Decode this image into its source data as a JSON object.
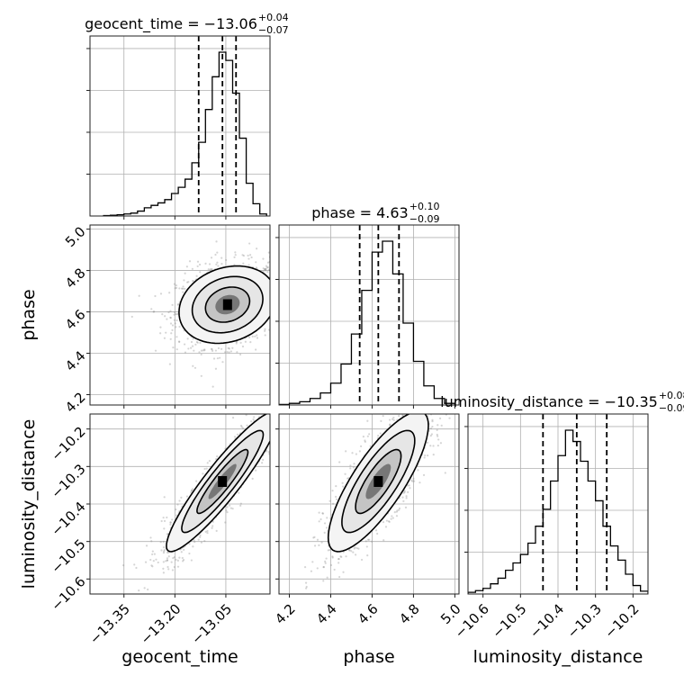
{
  "chart_data": {
    "type": "corner",
    "parameters": [
      {
        "name": "geocent_time",
        "median": -13.06,
        "plus": 0.04,
        "minus": 0.07,
        "lim": [
          -13.45,
          -12.92
        ],
        "title_prefix": "geocent_time = −13.06",
        "title_plus": "+0.04",
        "title_minus": "−0.07",
        "ticks": [
          -13.35,
          -13.2,
          -13.05
        ],
        "tick_labels": [
          "−13.35",
          "−13.20",
          "−13.05"
        ]
      },
      {
        "name": "phase",
        "median": 4.63,
        "plus": 0.1,
        "minus": 0.09,
        "lim": [
          4.15,
          5.02
        ],
        "title_prefix": "phase = 4.63",
        "title_plus": "+0.10",
        "title_minus": "−0.09",
        "ticks": [
          4.2,
          4.4,
          4.6,
          4.8,
          5.0
        ],
        "tick_labels": [
          "4.2",
          "4.4",
          "4.6",
          "4.8",
          "5.0"
        ]
      },
      {
        "name": "luminosity_distance",
        "median": -10.35,
        "plus": 0.08,
        "minus": 0.09,
        "lim": [
          -10.64,
          -10.16
        ],
        "title_prefix": "luminosity_distance = −10.35",
        "title_plus": "+0.08",
        "title_minus": "−0.09",
        "ticks": [
          -10.6,
          -10.5,
          -10.4,
          -10.3,
          -10.2
        ],
        "tick_labels": [
          "−10.6",
          "−10.5",
          "−10.4",
          "−10.3",
          "−10.2"
        ]
      }
    ],
    "quantile_lines": {
      "geocent_time": [
        -13.13,
        -13.06,
        -13.02
      ],
      "phase": [
        4.54,
        4.63,
        4.73
      ],
      "luminosity_distance": [
        -10.44,
        -10.35,
        -10.27
      ]
    },
    "histograms": {
      "geocent_time": {
        "edges": [
          -13.41,
          -13.39,
          -13.37,
          -13.35,
          -13.33,
          -13.31,
          -13.29,
          -13.27,
          -13.25,
          -13.23,
          -13.21,
          -13.19,
          -13.17,
          -13.15,
          -13.13,
          -13.11,
          -13.09,
          -13.07,
          -13.05,
          -13.03,
          -13.01,
          -12.99,
          -12.97,
          -12.95,
          -12.93
        ],
        "counts": [
          1,
          2,
          3,
          5,
          7,
          12,
          20,
          26,
          32,
          40,
          55,
          70,
          90,
          130,
          180,
          260,
          340,
          400,
          380,
          300,
          190,
          80,
          30,
          5
        ]
      },
      "phase": {
        "edges": [
          4.15,
          4.2,
          4.25,
          4.3,
          4.35,
          4.4,
          4.45,
          4.5,
          4.55,
          4.6,
          4.65,
          4.7,
          4.75,
          4.8,
          4.85,
          4.9,
          4.95,
          5.0
        ],
        "counts": [
          1,
          3,
          6,
          12,
          22,
          40,
          75,
          130,
          210,
          280,
          300,
          240,
          150,
          80,
          35,
          12,
          3
        ]
      },
      "luminosity_distance": {
        "edges": [
          -10.64,
          -10.62,
          -10.6,
          -10.58,
          -10.56,
          -10.54,
          -10.52,
          -10.5,
          -10.48,
          -10.46,
          -10.44,
          -10.42,
          -10.4,
          -10.38,
          -10.36,
          -10.34,
          -10.32,
          -10.3,
          -10.28,
          -10.26,
          -10.24,
          -10.22,
          -10.2,
          -10.18,
          -10.16
        ],
        "counts": [
          3,
          6,
          10,
          18,
          28,
          42,
          55,
          70,
          90,
          120,
          150,
          200,
          245,
          290,
          270,
          235,
          200,
          165,
          120,
          85,
          60,
          35,
          15,
          5
        ]
      }
    },
    "contours": {
      "geocent_time_vs_phase": {
        "center": [
          -13.045,
          4.635
        ],
        "sigma": [
          0.065,
          0.085
        ],
        "rho": 0.2
      },
      "geocent_time_vs_luminosity_distance": {
        "center": [
          -13.06,
          -10.34
        ],
        "sigma": [
          0.075,
          0.085
        ],
        "rho": 0.92
      },
      "phase_vs_luminosity_distance": {
        "center": [
          4.63,
          -10.34
        ],
        "sigma": [
          0.11,
          0.085
        ],
        "rho": 0.8
      }
    },
    "grid": true,
    "xlabels": [
      "geocent_time",
      "phase",
      "luminosity_distance"
    ],
    "ylabels": [
      "",
      "phase",
      "luminosity_distance"
    ]
  }
}
